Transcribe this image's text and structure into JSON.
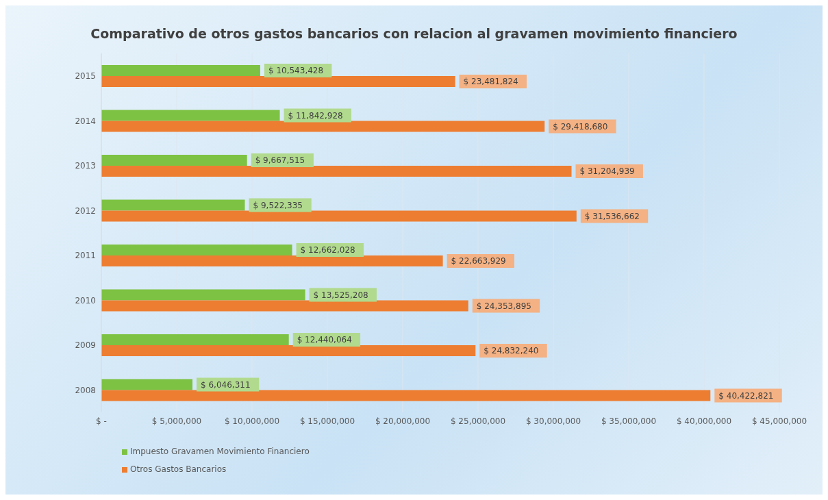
{
  "chart_data": {
    "type": "bar",
    "orientation": "horizontal",
    "title": "Comparativo de otros gastos bancarios con relacion al gravamen movimiento financiero",
    "categories": [
      "2015",
      "2014",
      "2013",
      "2012",
      "2011",
      "2010",
      "2009",
      "2008"
    ],
    "series": [
      {
        "name": "Impuesto Gravamen Movimiento Financiero",
        "color": "#7dc242",
        "values": [
          10543428,
          11842928,
          9667515,
          9522335,
          12662028,
          13525208,
          12440064,
          6046311
        ],
        "value_labels": [
          "$ 10,543,428",
          "$ 11,842,928",
          "$ 9,667,515",
          "$ 9,522,335",
          "$ 12,662,028",
          "$ 13,525,208",
          "$ 12,440,064",
          "$ 6,046,311"
        ]
      },
      {
        "name": "Otros Gastos Bancarios",
        "color": "#ed7d31",
        "values": [
          23481824,
          29418680,
          31204939,
          31536662,
          22663929,
          24353895,
          24832240,
          40422821
        ],
        "value_labels": [
          "$ 23,481,824",
          "$ 29,418,680",
          "$ 31,204,939",
          "$ 31,536,662",
          "$ 22,663,929",
          "$ 24,353,895",
          "$ 24,832,240",
          "$ 40,422,821"
        ]
      }
    ],
    "xlim": [
      0,
      45000000
    ],
    "xticks": [
      {
        "value": 0,
        "label": "$ -"
      },
      {
        "value": 5000000,
        "label": "$ 5,000,000"
      },
      {
        "value": 10000000,
        "label": "$ 10,000,000"
      },
      {
        "value": 15000000,
        "label": "$ 15,000,000"
      },
      {
        "value": 20000000,
        "label": "$ 20,000,000"
      },
      {
        "value": 25000000,
        "label": "$ 25,000,000"
      },
      {
        "value": 30000000,
        "label": "$ 30,000,000"
      },
      {
        "value": 35000000,
        "label": "$ 35,000,000"
      },
      {
        "value": 40000000,
        "label": "$ 40,000,000"
      },
      {
        "value": 45000000,
        "label": "$ 45,000,000"
      }
    ],
    "grid": "x",
    "legend": "bottom left"
  }
}
